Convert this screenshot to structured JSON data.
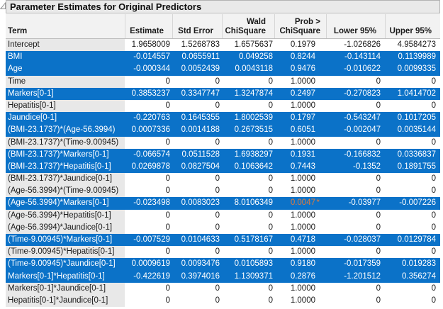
{
  "title": "Parameter Estimates for Original Predictors",
  "disclosure_icon": "open-triangle",
  "colors": {
    "row_highlight": "#0b72c8",
    "highlight_text": "#ffffff",
    "significant_value": "#e07b3c",
    "term_column_bg": "#e8e8e8",
    "header_bg": "#f2f2f2",
    "title_bar_bg": "#e9e9e9"
  },
  "table": {
    "columns": [
      {
        "id": "term",
        "line1": "",
        "line2": "Term"
      },
      {
        "id": "estimate",
        "line1": "",
        "line2": "Estimate"
      },
      {
        "id": "stderror",
        "line1": "",
        "line2": "Std Error"
      },
      {
        "id": "wald",
        "line1": "Wald",
        "line2": "ChiSquare"
      },
      {
        "id": "prob",
        "line1": "Prob >",
        "line2": "ChiSquare"
      },
      {
        "id": "lower",
        "line1": "",
        "line2": "Lower 95%"
      },
      {
        "id": "upper",
        "line1": "",
        "line2": "Upper 95%"
      }
    ],
    "rows": [
      {
        "term": "Intercept",
        "estimate": "1.9658009",
        "std_error": "1.5268783",
        "wald_chisquare": "1.6575637",
        "prob_chisquare": "0.1979",
        "lower_95": "-1.026826",
        "upper_95": "4.9584273",
        "highlighted": false
      },
      {
        "term": "BMI",
        "estimate": "-0.014557",
        "std_error": "0.0655911",
        "wald_chisquare": "0.049258",
        "prob_chisquare": "0.8244",
        "lower_95": "-0.143114",
        "upper_95": "0.1139989",
        "highlighted": true
      },
      {
        "term": "Age",
        "estimate": "-0.000344",
        "std_error": "0.0052439",
        "wald_chisquare": "0.0043118",
        "prob_chisquare": "0.9476",
        "lower_95": "-0.010622",
        "upper_95": "0.0099335",
        "highlighted": true
      },
      {
        "term": "Time",
        "estimate": "0",
        "std_error": "0",
        "wald_chisquare": "0",
        "prob_chisquare": "1.0000",
        "lower_95": "0",
        "upper_95": "0",
        "highlighted": false
      },
      {
        "term": "Markers[0-1]",
        "estimate": "0.3853237",
        "std_error": "0.3347747",
        "wald_chisquare": "1.3247874",
        "prob_chisquare": "0.2497",
        "lower_95": "-0.270823",
        "upper_95": "1.0414702",
        "highlighted": true
      },
      {
        "term": "Hepatitis[0-1]",
        "estimate": "0",
        "std_error": "0",
        "wald_chisquare": "0",
        "prob_chisquare": "1.0000",
        "lower_95": "0",
        "upper_95": "0",
        "highlighted": false
      },
      {
        "term": "Jaundice[0-1]",
        "estimate": "-0.220763",
        "std_error": "0.1645355",
        "wald_chisquare": "1.8002539",
        "prob_chisquare": "0.1797",
        "lower_95": "-0.543247",
        "upper_95": "0.1017205",
        "highlighted": true
      },
      {
        "term": "(BMI-23.1737)*(Age-56.3994)",
        "estimate": "0.0007336",
        "std_error": "0.0014188",
        "wald_chisquare": "0.2673515",
        "prob_chisquare": "0.6051",
        "lower_95": "-0.002047",
        "upper_95": "0.0035144",
        "highlighted": true
      },
      {
        "term": "(BMI-23.1737)*(Time-9.00945)",
        "estimate": "0",
        "std_error": "0",
        "wald_chisquare": "0",
        "prob_chisquare": "1.0000",
        "lower_95": "0",
        "upper_95": "0",
        "highlighted": false
      },
      {
        "term": "(BMI-23.1737)*Markers[0-1]",
        "estimate": "-0.066574",
        "std_error": "0.0511528",
        "wald_chisquare": "1.6938297",
        "prob_chisquare": "0.1931",
        "lower_95": "-0.166832",
        "upper_95": "0.0336837",
        "highlighted": true
      },
      {
        "term": "(BMI-23.1737)*Hepatitis[0-1]",
        "estimate": "0.0269878",
        "std_error": "0.0827504",
        "wald_chisquare": "0.1063642",
        "prob_chisquare": "0.7443",
        "lower_95": "-0.1352",
        "upper_95": "0.1891755",
        "highlighted": true
      },
      {
        "term": "(BMI-23.1737)*Jaundice[0-1]",
        "estimate": "0",
        "std_error": "0",
        "wald_chisquare": "0",
        "prob_chisquare": "1.0000",
        "lower_95": "0",
        "upper_95": "0",
        "highlighted": false
      },
      {
        "term": "(Age-56.3994)*(Time-9.00945)",
        "estimate": "0",
        "std_error": "0",
        "wald_chisquare": "0",
        "prob_chisquare": "1.0000",
        "lower_95": "0",
        "upper_95": "0",
        "highlighted": false
      },
      {
        "term": "(Age-56.3994)*Markers[0-1]",
        "estimate": "-0.023498",
        "std_error": "0.0083023",
        "wald_chisquare": "8.0106349",
        "prob_chisquare": "0.0047*",
        "lower_95": "-0.03977",
        "upper_95": "-0.007226",
        "highlighted": true
      },
      {
        "term": "(Age-56.3994)*Hepatitis[0-1]",
        "estimate": "0",
        "std_error": "0",
        "wald_chisquare": "0",
        "prob_chisquare": "1.0000",
        "lower_95": "0",
        "upper_95": "0",
        "highlighted": false
      },
      {
        "term": "(Age-56.3994)*Jaundice[0-1]",
        "estimate": "0",
        "std_error": "0",
        "wald_chisquare": "0",
        "prob_chisquare": "1.0000",
        "lower_95": "0",
        "upper_95": "0",
        "highlighted": false
      },
      {
        "term": "(Time-9.00945)*Markers[0-1]",
        "estimate": "-0.007529",
        "std_error": "0.0104633",
        "wald_chisquare": "0.5178167",
        "prob_chisquare": "0.4718",
        "lower_95": "-0.028037",
        "upper_95": "0.0129784",
        "highlighted": true
      },
      {
        "term": "(Time-9.00945)*Hepatitis[0-1]",
        "estimate": "0",
        "std_error": "0",
        "wald_chisquare": "0",
        "prob_chisquare": "1.0000",
        "lower_95": "0",
        "upper_95": "0",
        "highlighted": false
      },
      {
        "term": "(Time-9.00945)*Jaundice[0-1]",
        "estimate": "0.0009619",
        "std_error": "0.0093476",
        "wald_chisquare": "0.0105893",
        "prob_chisquare": "0.9180",
        "lower_95": "-0.017359",
        "upper_95": "0.019283",
        "highlighted": true
      },
      {
        "term": "Markers[0-1]*Hepatitis[0-1]",
        "estimate": "-0.422619",
        "std_error": "0.3974016",
        "wald_chisquare": "1.1309371",
        "prob_chisquare": "0.2876",
        "lower_95": "-1.201512",
        "upper_95": "0.356274",
        "highlighted": true
      },
      {
        "term": "Markers[0-1]*Jaundice[0-1]",
        "estimate": "0",
        "std_error": "0",
        "wald_chisquare": "0",
        "prob_chisquare": "1.0000",
        "lower_95": "0",
        "upper_95": "0",
        "highlighted": false
      },
      {
        "term": "Hepatitis[0-1]*Jaundice[0-1]",
        "estimate": "0",
        "std_error": "0",
        "wald_chisquare": "0",
        "prob_chisquare": "1.0000",
        "lower_95": "0",
        "upper_95": "0",
        "highlighted": false
      }
    ]
  }
}
